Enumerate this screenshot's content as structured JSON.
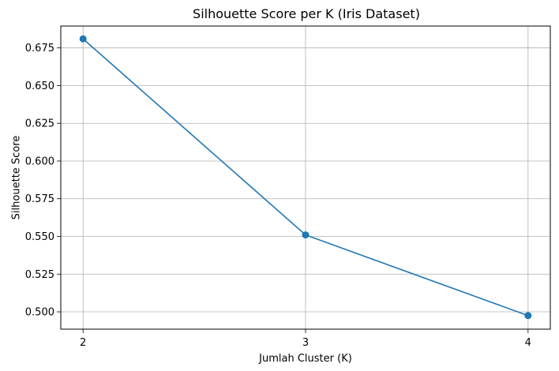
{
  "chart_data": {
    "type": "line",
    "title": "Silhouette Score per K (Iris Dataset)",
    "xlabel": "Jumlah Cluster (K)",
    "ylabel": "Silhouette Score",
    "x": [
      2,
      3,
      4
    ],
    "x_tick_labels": [
      "2",
      "3",
      "4"
    ],
    "series": [
      {
        "values": [
          0.681,
          0.551,
          0.4975
        ],
        "marker": "circle",
        "color": "#1f77b4"
      }
    ],
    "y_ticks": [
      0.5,
      0.525,
      0.55,
      0.575,
      0.6,
      0.625,
      0.65,
      0.675
    ],
    "y_tick_labels": [
      "0.500",
      "0.525",
      "0.550",
      "0.575",
      "0.600",
      "0.625",
      "0.650",
      "0.675"
    ],
    "xlim": [
      1.9,
      4.1
    ],
    "ylim": [
      0.4885,
      0.6895
    ],
    "grid": true,
    "colors": {
      "line": "#1f77b4",
      "grid": "#b0b0b0",
      "axes": "#000000"
    }
  }
}
